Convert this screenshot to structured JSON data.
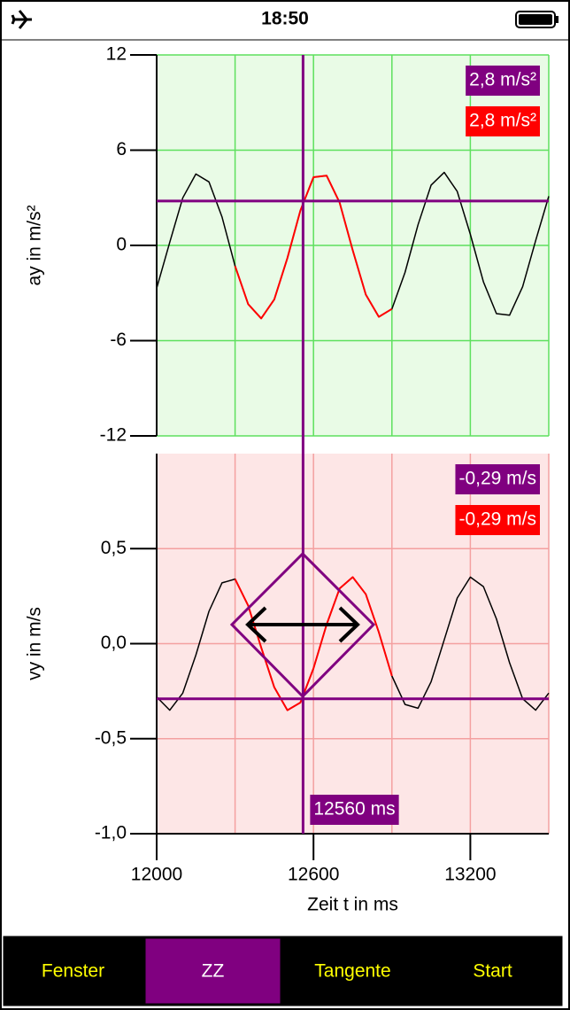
{
  "status_bar": {
    "time": "18:50"
  },
  "chart_data": [
    {
      "type": "line",
      "y_label": "ay in m/s²",
      "x": [
        12000,
        12050,
        12100,
        12150,
        12200,
        12250,
        12300,
        12350,
        12400,
        12450,
        12500,
        12550,
        12600,
        12650,
        12700,
        12750,
        12800,
        12850,
        12900,
        12950,
        13000,
        13050,
        13100,
        13150,
        13200,
        13250,
        13300,
        13350,
        13400,
        13450,
        13500
      ],
      "series": [
        {
          "color": "#000000",
          "values": [
            -2.7,
            0.2,
            3.0,
            4.5,
            4.0,
            1.8,
            -1.3,
            -3.7,
            -4.6,
            -3.4,
            -0.8,
            2.2,
            4.3,
            4.4,
            2.7,
            -0.3,
            -3.1,
            -4.5,
            -4.0,
            -1.7,
            1.3,
            3.8,
            4.6,
            3.4,
            0.7,
            -2.3,
            -4.3,
            -4.4,
            -2.6,
            0.3,
            3.1
          ]
        },
        {
          "color": "#ff0000",
          "values": [
            null,
            null,
            null,
            null,
            null,
            null,
            -1.3,
            -3.7,
            -4.6,
            -3.4,
            -0.8,
            2.2,
            4.3,
            4.4,
            2.7,
            -0.3,
            -3.1,
            -4.5,
            -4.0,
            null,
            null,
            null,
            null,
            null,
            null,
            null,
            null,
            null,
            null,
            null,
            null
          ]
        }
      ],
      "xlim": [
        12000,
        13500
      ],
      "xgrid": [
        12000,
        12300,
        12600,
        12900,
        13200,
        13500
      ],
      "ylim": [
        -12,
        12
      ],
      "yticks": [
        -12,
        -6,
        0,
        6,
        12
      ],
      "grid_color": "#5ee05e",
      "background": "#e9fbe6",
      "cursor": {
        "value": 2.8,
        "label": "2,8 m/s²",
        "fit_label": "2,8 m/s²"
      }
    },
    {
      "type": "line",
      "y_label": "vy in m/s",
      "x_label": "Zeit t in ms",
      "x": [
        12000,
        12050,
        12100,
        12150,
        12200,
        12250,
        12300,
        12350,
        12400,
        12450,
        12500,
        12550,
        12600,
        12650,
        12700,
        12750,
        12800,
        12850,
        12900,
        12950,
        13000,
        13050,
        13100,
        13150,
        13200,
        13250,
        13300,
        13350,
        13400,
        13450,
        13500
      ],
      "series": [
        {
          "color": "#000000",
          "values": [
            -0.28,
            -0.35,
            -0.26,
            -0.06,
            0.17,
            0.32,
            0.34,
            0.2,
            -0.02,
            -0.23,
            -0.35,
            -0.31,
            -0.13,
            0.1,
            0.29,
            0.35,
            0.26,
            0.06,
            -0.17,
            -0.32,
            -0.34,
            -0.2,
            0.02,
            0.24,
            0.35,
            0.3,
            0.13,
            -0.1,
            -0.29,
            -0.35,
            -0.26
          ]
        },
        {
          "color": "#ff0000",
          "values": [
            null,
            null,
            null,
            null,
            null,
            null,
            0.34,
            0.2,
            -0.02,
            -0.23,
            -0.35,
            -0.31,
            -0.13,
            0.1,
            0.29,
            0.35,
            0.26,
            0.06,
            -0.17,
            null,
            null,
            null,
            null,
            null,
            null,
            null,
            null,
            null,
            null,
            null,
            null
          ]
        }
      ],
      "xlim": [
        12000,
        13500
      ],
      "xticks": [
        12000,
        12600,
        13200
      ],
      "xgrid": [
        12000,
        12300,
        12600,
        12900,
        13200,
        13500
      ],
      "ylim": [
        -1.0,
        1.0
      ],
      "yticks": [
        {
          "value": -1.0,
          "label": "-1,0"
        },
        {
          "value": -0.5,
          "label": "-0,5"
        },
        {
          "value": 0.0,
          "label": "0,0"
        },
        {
          "value": 0.5,
          "label": "0,5"
        }
      ],
      "grid_color": "#f4a0a0",
      "background": "#fde6e6",
      "cursor": {
        "value": -0.29,
        "label": "-0,29 m/s",
        "fit_label": "-0,29 m/s"
      },
      "cursor_x": {
        "value": 12560,
        "label": "12560 ms"
      }
    }
  ],
  "buttons": [
    {
      "label": "Fenster"
    },
    {
      "label": "ZZ",
      "active": true
    },
    {
      "label": "Tangente"
    },
    {
      "label": "Start"
    }
  ]
}
